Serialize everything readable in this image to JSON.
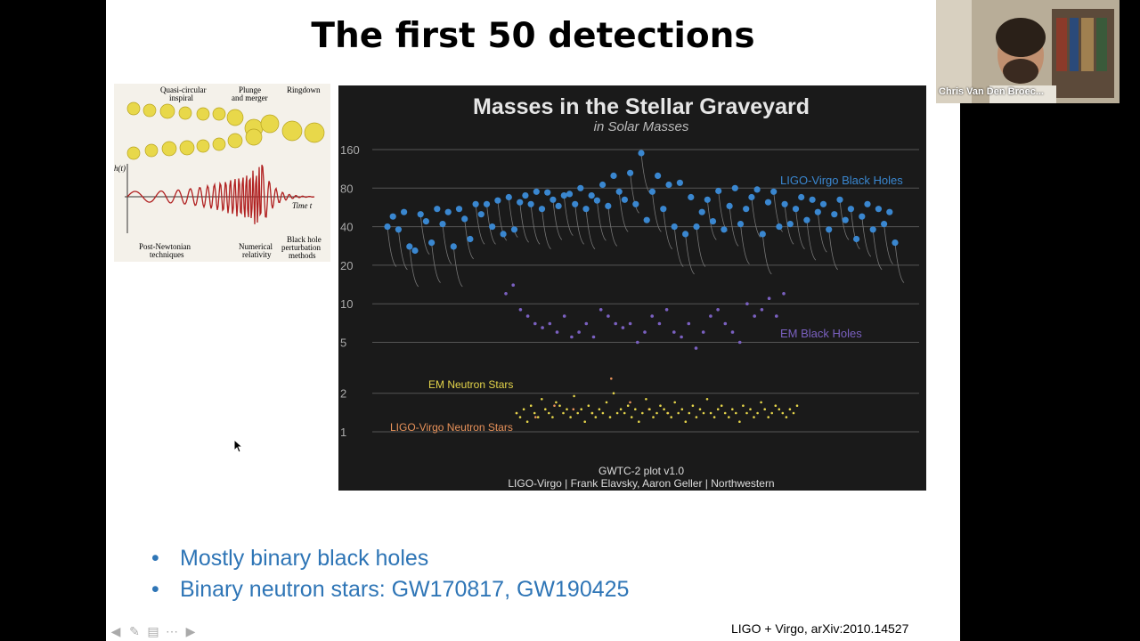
{
  "slide": {
    "title": "The first 50 detections",
    "bullets": [
      "Mostly binary black holes",
      "Binary neutron stars: GW170817, GW190425"
    ],
    "citation": "LIGO + Virgo, arXiv:2010.14527"
  },
  "webcam": {
    "name": "Chris Van Den Broec..."
  },
  "waveform_figure": {
    "labels": {
      "inspiral": [
        "Quasi-circular",
        "inspiral"
      ],
      "merger": [
        "Plunge",
        "and merger"
      ],
      "ringdown": "Ringdown",
      "y_axis": "h(t)",
      "x_axis": "Time t",
      "pn": [
        "Post-Newtonian",
        "techniques"
      ],
      "nr": [
        "Numerical",
        "relativity"
      ],
      "bh": [
        "Black hole",
        "perturbation",
        "methods"
      ]
    }
  },
  "chart_data": {
    "type": "scatter",
    "title": "Masses in the Stellar Graveyard",
    "subtitle": "in Solar Masses",
    "y_scale": "log",
    "y_ticks": [
      160,
      80,
      40,
      20,
      10,
      5,
      2,
      1
    ],
    "grid": true,
    "series": [
      {
        "name": "LIGO-Virgo Black Holes",
        "color": "#3a87d0",
        "values": [
          40,
          48,
          38,
          52,
          28,
          26,
          50,
          44,
          30,
          55,
          42,
          52,
          28,
          55,
          46,
          32,
          60,
          50,
          60,
          40,
          64,
          35,
          68,
          38,
          62,
          70,
          60,
          75,
          55,
          74,
          65,
          58,
          70,
          72,
          60,
          80,
          55,
          70,
          64,
          85,
          58,
          100,
          75,
          65,
          105,
          60,
          150,
          45,
          75,
          100,
          55,
          85,
          40,
          88,
          35,
          68,
          40,
          52,
          65,
          44,
          76,
          38,
          58,
          80,
          42,
          55,
          68,
          78,
          35,
          62,
          75,
          40,
          60,
          42,
          55,
          68,
          45,
          65,
          52,
          60,
          38,
          50,
          65,
          45,
          55,
          32,
          48,
          60,
          38,
          55,
          42,
          52,
          30
        ]
      },
      {
        "name": "EM Black Holes",
        "color": "#7a60c0",
        "values": [
          12,
          14,
          9,
          8,
          7,
          6.5,
          7,
          6,
          8,
          5.5,
          6,
          7,
          5.5,
          9,
          8,
          7,
          6.5,
          7,
          5,
          6,
          8,
          7,
          9,
          6,
          5.5,
          7,
          4.5,
          6,
          8,
          9,
          7,
          6,
          5,
          10,
          8,
          9,
          11,
          8,
          12
        ]
      },
      {
        "name": "LIGO-Virgo Neutron Stars",
        "color": "#e8925a",
        "values": [
          1.4,
          1.3,
          1.6,
          1.5,
          1.4,
          2.6,
          1.7,
          1.5,
          1.4
        ]
      },
      {
        "name": "EM Neutron Stars",
        "color": "#e4d44a",
        "values": [
          1.4,
          1.3,
          1.5,
          1.2,
          1.6,
          1.4,
          1.3,
          1.8,
          1.5,
          1.4,
          1.3,
          1.7,
          1.6,
          1.4,
          1.5,
          1.3,
          1.9,
          1.4,
          1.5,
          1.2,
          1.6,
          1.4,
          1.3,
          1.5,
          1.4,
          1.7,
          1.3,
          2.0,
          1.4,
          1.5,
          1.4,
          1.6,
          1.3,
          1.5,
          1.2,
          1.4,
          1.8,
          1.5,
          1.3,
          1.4,
          1.6,
          1.5,
          1.4,
          1.3,
          1.7,
          1.4,
          1.5,
          1.2,
          1.4,
          1.6,
          1.3,
          1.5,
          1.4,
          1.8,
          1.4,
          1.3,
          1.5,
          1.6,
          1.4,
          1.3,
          1.5,
          1.4,
          1.2,
          1.6,
          1.4,
          1.5,
          1.3,
          1.4,
          1.7,
          1.5,
          1.3,
          1.4,
          1.6,
          1.5,
          1.4,
          1.3,
          1.5,
          1.4,
          1.6
        ]
      }
    ],
    "footer": [
      "GWTC-2 plot v1.0",
      "LIGO-Virgo | Frank Elavsky, Aaron Geller | Northwestern"
    ]
  }
}
